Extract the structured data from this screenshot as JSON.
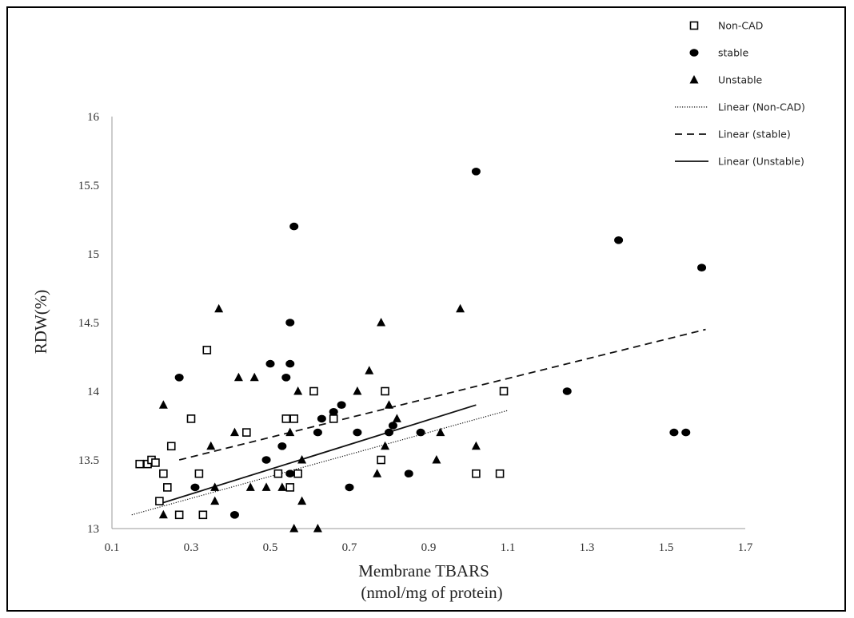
{
  "chart_data": {
    "type": "scatter",
    "xlabel": [
      "Membrane TBARS",
      "(nmol/mg of protein)"
    ],
    "ylabel": "RDW(%)",
    "xlim": [
      0.1,
      1.7
    ],
    "ylim": [
      13,
      16
    ],
    "xticks": [
      0.1,
      0.3,
      0.5,
      0.7,
      0.9,
      1.1,
      1.3,
      1.5,
      1.7
    ],
    "yticks": [
      13,
      13.5,
      14,
      14.5,
      15,
      15.5,
      16
    ],
    "xtick_labels": [
      "0.1",
      "0.3",
      "0.5",
      "0.7",
      "0.9",
      "1.1",
      "1.3",
      "1.5",
      "1.7"
    ],
    "ytick_labels": [
      "13",
      "13.5",
      "14",
      "14.5",
      "15",
      "15.5",
      "16"
    ],
    "grid": false,
    "legend_position": "top-right",
    "series": [
      {
        "name": "Non-CAD",
        "marker": "open-square",
        "color": "#000000",
        "points": [
          [
            0.17,
            13.47
          ],
          [
            0.19,
            13.47
          ],
          [
            0.2,
            13.5
          ],
          [
            0.21,
            13.48
          ],
          [
            0.22,
            13.2
          ],
          [
            0.23,
            13.4
          ],
          [
            0.24,
            13.3
          ],
          [
            0.25,
            13.6
          ],
          [
            0.27,
            13.1
          ],
          [
            0.3,
            13.8
          ],
          [
            0.32,
            13.4
          ],
          [
            0.33,
            13.1
          ],
          [
            0.34,
            14.3
          ],
          [
            0.44,
            13.7
          ],
          [
            0.52,
            13.4
          ],
          [
            0.54,
            13.8
          ],
          [
            0.55,
            13.3
          ],
          [
            0.56,
            13.8
          ],
          [
            0.57,
            13.4
          ],
          [
            0.61,
            14.0
          ],
          [
            0.66,
            13.8
          ],
          [
            0.78,
            13.5
          ],
          [
            0.79,
            14.0
          ],
          [
            1.02,
            13.4
          ],
          [
            1.08,
            13.4
          ],
          [
            1.09,
            14.0
          ]
        ]
      },
      {
        "name": "stable",
        "marker": "filled-circle",
        "color": "#000000",
        "points": [
          [
            0.27,
            14.1
          ],
          [
            0.31,
            13.3
          ],
          [
            0.41,
            13.1
          ],
          [
            0.49,
            13.5
          ],
          [
            0.5,
            14.2
          ],
          [
            0.53,
            13.6
          ],
          [
            0.54,
            14.1
          ],
          [
            0.55,
            14.5
          ],
          [
            0.55,
            14.2
          ],
          [
            0.55,
            13.4
          ],
          [
            0.56,
            15.2
          ],
          [
            0.62,
            13.7
          ],
          [
            0.63,
            13.8
          ],
          [
            0.66,
            13.85
          ],
          [
            0.68,
            13.9
          ],
          [
            0.7,
            13.3
          ],
          [
            0.72,
            13.7
          ],
          [
            0.8,
            13.7
          ],
          [
            0.81,
            13.75
          ],
          [
            0.85,
            13.4
          ],
          [
            0.88,
            13.7
          ],
          [
            1.02,
            15.6
          ],
          [
            1.25,
            14.0
          ],
          [
            1.38,
            15.1
          ],
          [
            1.52,
            13.7
          ],
          [
            1.55,
            13.7
          ],
          [
            1.59,
            14.9
          ]
        ]
      },
      {
        "name": "Unstable",
        "marker": "filled-triangle",
        "color": "#000000",
        "points": [
          [
            0.23,
            13.9
          ],
          [
            0.23,
            13.1
          ],
          [
            0.35,
            13.6
          ],
          [
            0.36,
            13.3
          ],
          [
            0.36,
            13.2
          ],
          [
            0.37,
            14.6
          ],
          [
            0.41,
            13.7
          ],
          [
            0.42,
            14.1
          ],
          [
            0.45,
            13.3
          ],
          [
            0.46,
            14.1
          ],
          [
            0.49,
            13.3
          ],
          [
            0.53,
            13.3
          ],
          [
            0.55,
            13.7
          ],
          [
            0.56,
            13.0
          ],
          [
            0.57,
            14.0
          ],
          [
            0.58,
            13.2
          ],
          [
            0.58,
            13.5
          ],
          [
            0.62,
            13.0
          ],
          [
            0.72,
            14.0
          ],
          [
            0.75,
            14.15
          ],
          [
            0.77,
            13.4
          ],
          [
            0.78,
            14.5
          ],
          [
            0.79,
            13.6
          ],
          [
            0.8,
            13.9
          ],
          [
            0.82,
            13.8
          ],
          [
            0.92,
            13.5
          ],
          [
            0.93,
            13.7
          ],
          [
            0.98,
            14.6
          ],
          [
            1.02,
            13.6
          ]
        ]
      }
    ],
    "trendlines": [
      {
        "name": "Linear (Non-CAD)",
        "style": "dotted",
        "x": [
          0.15,
          1.1
        ],
        "y": [
          13.1,
          13.86
        ]
      },
      {
        "name": "Linear (stable)",
        "style": "dashed",
        "x": [
          0.27,
          1.6
        ],
        "y": [
          13.5,
          14.45
        ]
      },
      {
        "name": "Linear (Unstable)",
        "style": "solid",
        "x": [
          0.22,
          1.02
        ],
        "y": [
          13.18,
          13.9
        ]
      }
    ]
  }
}
